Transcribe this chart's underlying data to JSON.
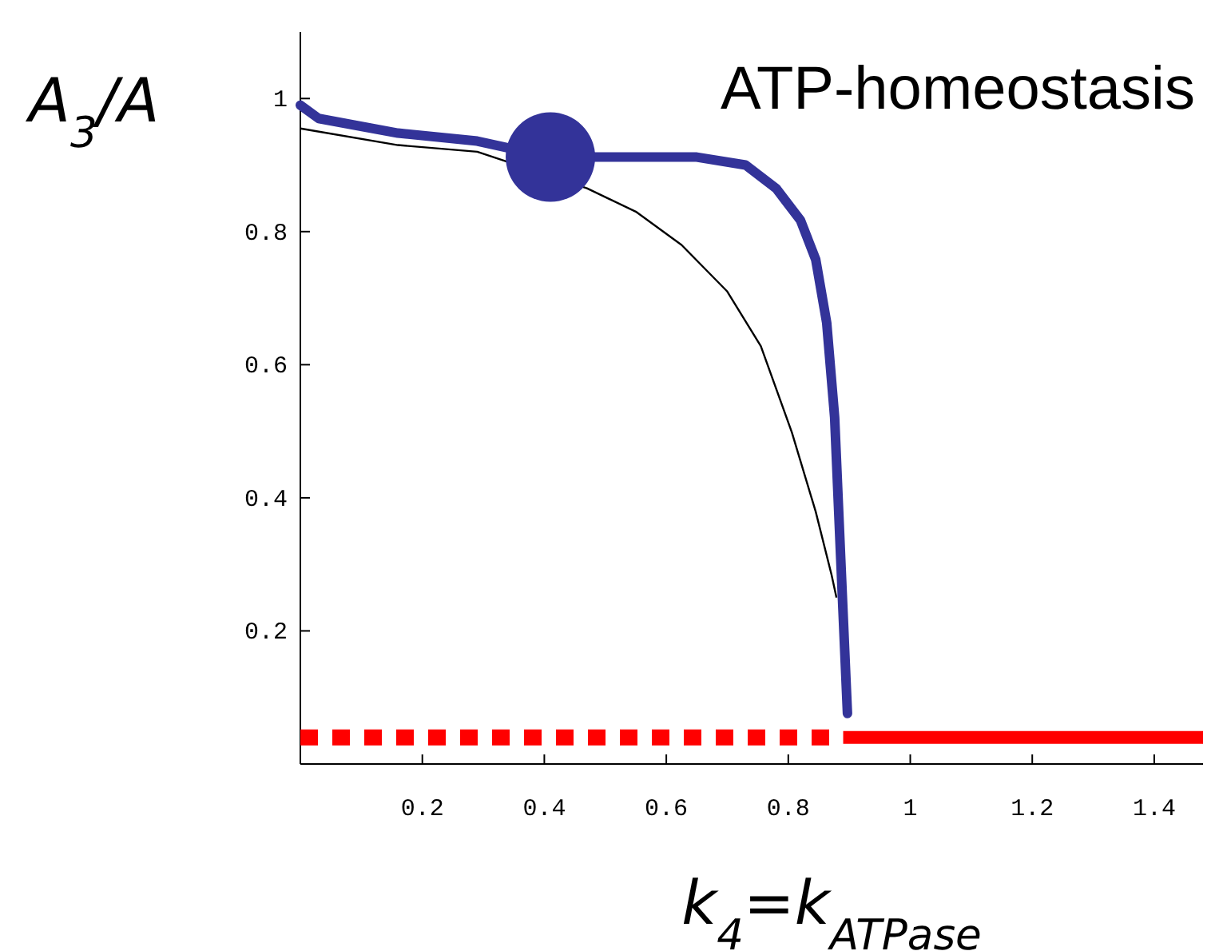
{
  "chart_data": {
    "type": "line",
    "title": "ATP-homeostasis",
    "xlabel": "k$_{4}$=k$_{ATPase}$",
    "ylabel": "A$_{3}$/A",
    "xlim": [
      0,
      1.48
    ],
    "ylim": [
      0,
      1.1
    ],
    "xticks": [
      {
        "value": 0.2,
        "label": "0.2"
      },
      {
        "value": 0.4,
        "label": "0.4"
      },
      {
        "value": 0.6,
        "label": "0.6"
      },
      {
        "value": 0.8,
        "label": "0.8"
      },
      1,
      {
        "value": 1.2,
        "label": "1.2"
      },
      {
        "value": 1.4,
        "label": "1.4"
      }
    ],
    "yticks": [
      {
        "value": 0.2,
        "label": "0.2"
      },
      {
        "value": 0.4,
        "label": "0.4"
      },
      {
        "value": 0.6,
        "label": "0.6"
      },
      {
        "value": 0.8,
        "label": "0.8"
      },
      1
    ],
    "grid": false,
    "series": [
      {
        "color": "#000000",
        "line_style": "solid",
        "x": [
          0,
          0.16,
          0.29,
          0.47,
          0.55,
          0.625,
          0.7,
          0.755,
          0.806,
          0.845,
          0.871,
          0.879
        ],
        "values": [
          0.955,
          0.93,
          0.92,
          0.865,
          0.83,
          0.78,
          0.71,
          0.628,
          0.498,
          0.379,
          0.284,
          0.25
        ]
      },
      {
        "color": "#333399",
        "line_style": "solid",
        "x": [
          0,
          0.03,
          0.16,
          0.29,
          0.41,
          0.55,
          0.65,
          0.73,
          0.78,
          0.82,
          0.845,
          0.863,
          0.876,
          0.886,
          0.897
        ],
        "values": [
          0.99,
          0.97,
          0.948,
          0.936,
          0.912,
          0.912,
          0.912,
          0.9,
          0.865,
          0.817,
          0.758,
          0.663,
          0.521,
          0.308,
          0.076
        ]
      },
      {
        "color": "#ff0000",
        "line_style": "dashed",
        "x": [
          0,
          0.89
        ],
        "values": [
          0.04,
          0.04
        ]
      },
      {
        "color": "#ff0000",
        "line_style": "solid",
        "x": [
          0.89,
          1.48
        ],
        "values": [
          0.04,
          0.04
        ]
      },
      {
        "type": "scatter",
        "color": "#333399",
        "marker": "circle",
        "x": [
          0.41
        ],
        "values": [
          0.912
        ]
      }
    ]
  }
}
